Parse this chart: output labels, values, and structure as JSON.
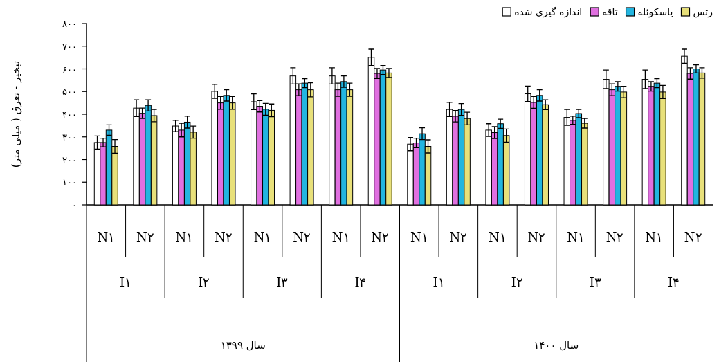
{
  "chart_data": {
    "type": "bar",
    "ylabel": "تبخیر - تعرق ( میلی متر)",
    "categories": [
      "N۱",
      "N۲",
      "N۱",
      "N۲",
      "N۱",
      "N۲",
      "N۱",
      "N۲",
      "N۱",
      "N۲",
      "N۱",
      "N۲",
      "N۱",
      "N۲",
      "N۱",
      "N۲"
    ],
    "annotations": [
      "I۱",
      "I۲",
      "I۳",
      "I۴",
      "I۱",
      "I۲",
      "I۳",
      "I۴",
      "سال ۱۳۹۹",
      "سال ۱۴۰۰"
    ],
    "series": [
      {
        "name": "اندازه گیری شده",
        "color": "#ffffff",
        "values": [
          275,
          427,
          348,
          501,
          455,
          569,
          569,
          651,
          268,
          421,
          330,
          490,
          386,
          554,
          554,
          656
        ],
        "errors": [
          29,
          37,
          25,
          31,
          35,
          36,
          36,
          36,
          29,
          31,
          28,
          34,
          35,
          41,
          41,
          31
        ]
      },
      {
        "name": "تاقه",
        "color": "#e070e0",
        "values": [
          275,
          404,
          330,
          450,
          435,
          508,
          508,
          580,
          273,
          391,
          319,
          452,
          373,
          508,
          523,
          580
        ],
        "errors": [
          19,
          23,
          30,
          28,
          25,
          26,
          29,
          22,
          21,
          25,
          26,
          26,
          18,
          26,
          21,
          25
        ]
      },
      {
        "name": "پاسکوئله",
        "color": "#22b5e0",
        "values": [
          330,
          439,
          365,
          483,
          422,
          537,
          544,
          595,
          314,
          421,
          358,
          483,
          403,
          523,
          537,
          600
        ],
        "errors": [
          23,
          25,
          26,
          25,
          26,
          20,
          25,
          20,
          26,
          26,
          20,
          25,
          18,
          21,
          20,
          18
        ]
      },
      {
        "name": "رتس",
        "color": "#e8e07a",
        "values": [
          258,
          394,
          321,
          450,
          417,
          508,
          508,
          582,
          258,
          381,
          306,
          442,
          360,
          498,
          498,
          582
        ],
        "errors": [
          30,
          27,
          27,
          28,
          28,
          31,
          29,
          20,
          29,
          28,
          29,
          22,
          21,
          25,
          29,
          23
        ]
      }
    ],
    "ylim": [
      0,
      800
    ],
    "yticks": [
      {
        "value": 0,
        "label": "۰"
      },
      {
        "value": 100,
        "label": "۱۰۰"
      },
      {
        "value": 200,
        "label": "۲۰۰"
      },
      {
        "value": 300,
        "label": "۳۰۰"
      },
      {
        "value": 400,
        "label": "۴۰۰"
      },
      {
        "value": 500,
        "label": "۵۰۰"
      },
      {
        "value": 600,
        "label": "۶۰۰"
      },
      {
        "value": 700,
        "label": "۷۰۰"
      },
      {
        "value": 800,
        "label": "۸۰۰"
      }
    ],
    "grid": false,
    "legend": "top right"
  }
}
